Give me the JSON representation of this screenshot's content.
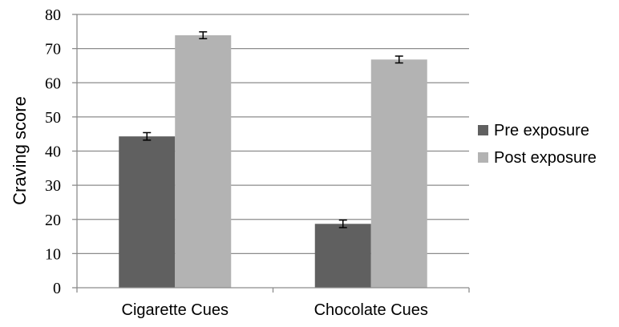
{
  "chart_data": {
    "type": "bar",
    "title": "",
    "xlabel": "",
    "ylabel": "Craving score",
    "categories": [
      "Cigarette Cues",
      "Chocolate Cues"
    ],
    "series": [
      {
        "name": "Pre exposure",
        "values": [
          44.3,
          18.7
        ],
        "errors": [
          1.1,
          1.1
        ],
        "color": "#606060"
      },
      {
        "name": "Post exposure",
        "values": [
          73.9,
          66.8
        ],
        "errors": [
          1.0,
          1.0
        ],
        "color": "#b3b3b3"
      }
    ],
    "ylim": [
      0,
      80
    ],
    "yticks": [
      "0",
      "10",
      "20",
      "30",
      "40",
      "50",
      "60",
      "70",
      "80"
    ],
    "grid": true,
    "legend_position": "right"
  }
}
